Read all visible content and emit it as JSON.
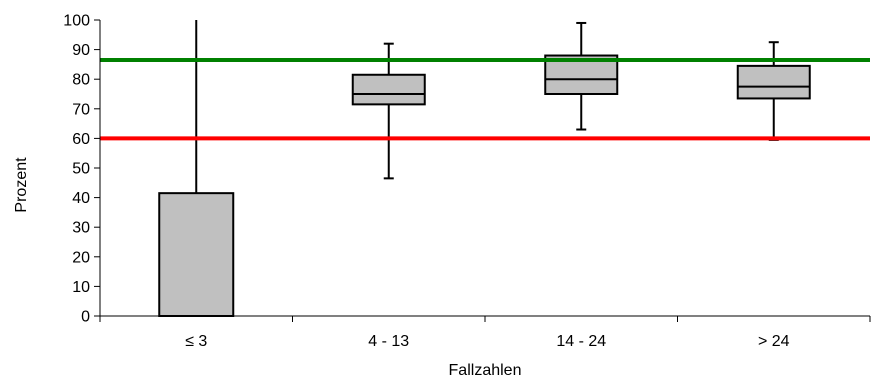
{
  "chart_data": {
    "type": "boxplot",
    "xlabel": "Fallzahlen",
    "ylabel": "Prozent",
    "ylim": [
      0,
      100
    ],
    "yticks": [
      0,
      10,
      20,
      30,
      40,
      50,
      60,
      70,
      80,
      90,
      100
    ],
    "categories": [
      "≤ 3",
      "4 - 13",
      "14 - 24",
      "> 24"
    ],
    "boxes": [
      {
        "category": "≤ 3",
        "min": 0,
        "q1": 0,
        "median": 0,
        "q3": 41.5,
        "max": 100
      },
      {
        "category": "4 - 13",
        "min": 46.5,
        "q1": 71.5,
        "median": 75,
        "q3": 81.5,
        "max": 92
      },
      {
        "category": "14 - 24",
        "min": 63,
        "q1": 75,
        "median": 80,
        "q3": 88,
        "max": 99
      },
      {
        "category": "> 24",
        "min": 59.5,
        "q1": 73.5,
        "median": 77.5,
        "q3": 84.5,
        "max": 92.5
      }
    ],
    "reference_lines": [
      {
        "value": 86.5,
        "color": "#008000"
      },
      {
        "value": 60,
        "color": "#ff0000"
      }
    ],
    "box_fill": "#c0c0c0",
    "grid": false
  }
}
